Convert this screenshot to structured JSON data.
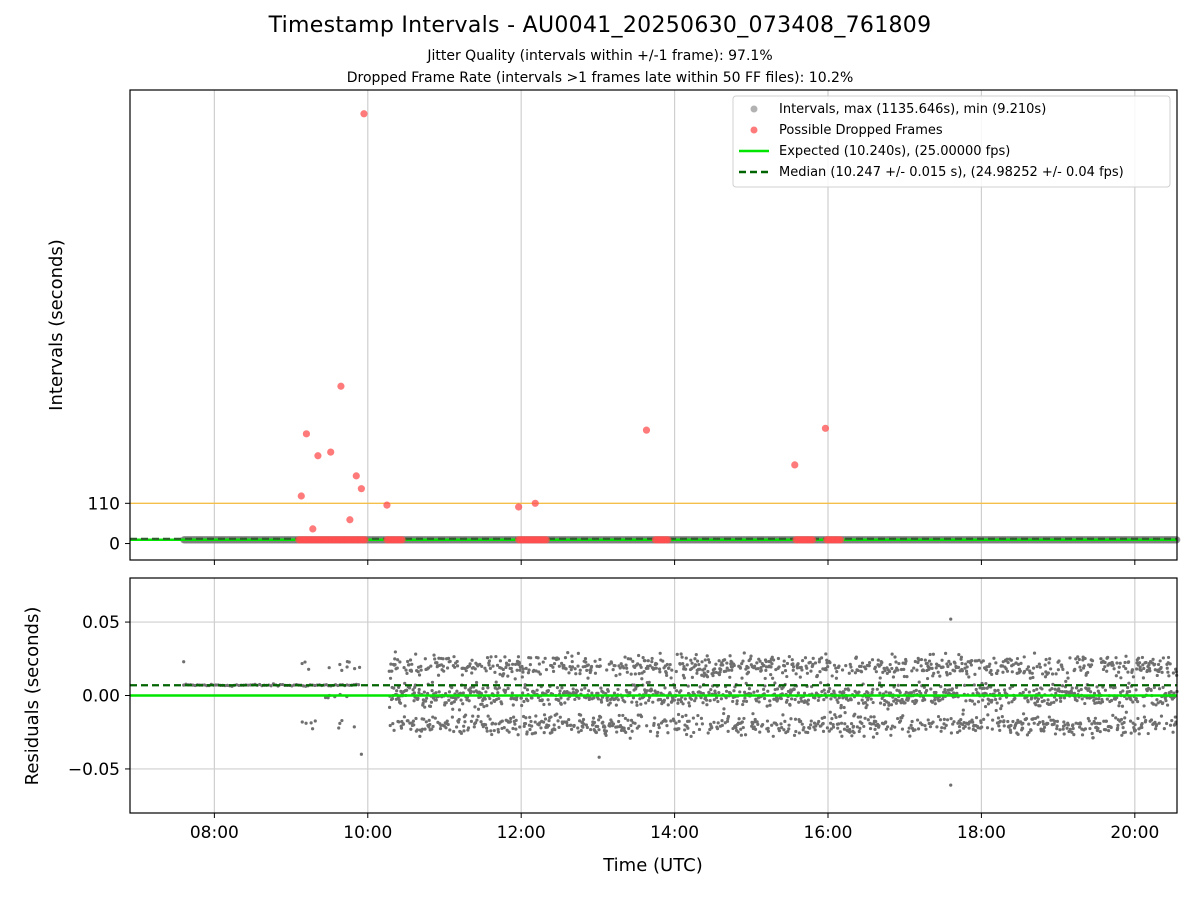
{
  "chart_data": [
    {
      "type": "scatter",
      "title": "Timestamp Intervals - AU0041_20250630_073408_761809",
      "subtitle_lines": [
        "Jitter Quality (intervals within +/-1 frame): 97.1%",
        "Dropped Frame Rate (intervals >1 frames late within 50 FF files): 10.2%"
      ],
      "xlabel": "",
      "ylabel": "Intervals (seconds)",
      "xlim_hours": [
        6.9,
        20.55
      ],
      "ylim": [
        -45,
        1240
      ],
      "x_ticks": [
        "08:00",
        "10:00",
        "12:00",
        "14:00",
        "16:00",
        "18:00",
        "20:00"
      ],
      "y_ticks": [
        0,
        110
      ],
      "threshold_line": 110,
      "grid": true,
      "legend_position": "upper right",
      "legend": [
        "Intervals, max (1135.646s), min (9.210s)",
        "Possible Dropped Frames",
        "Expected (10.240s), (25.00000 fps)",
        "Median (10.247 +/- 0.015 s), (24.98252 +/- 0.04 fps)"
      ],
      "expected_interval": 10.24,
      "median_interval": 10.247,
      "intervals_series": {
        "name": "Intervals",
        "x_range_hours": [
          7.6,
          20.55
        ],
        "typical_value": 10.24,
        "max": 1135.646,
        "min": 9.21
      },
      "dropped_frames": {
        "name": "Possible Dropped Frames",
        "points": [
          {
            "x": "09:08",
            "y": 130
          },
          {
            "x": "09:12",
            "y": 300
          },
          {
            "x": "09:17",
            "y": 40
          },
          {
            "x": "09:21",
            "y": 240
          },
          {
            "x": "09:31",
            "y": 250
          },
          {
            "x": "09:39",
            "y": 430
          },
          {
            "x": "09:46",
            "y": 65
          },
          {
            "x": "09:51",
            "y": 185
          },
          {
            "x": "09:55",
            "y": 150
          },
          {
            "x": "09:57",
            "y": 1175
          },
          {
            "x": "10:15",
            "y": 105
          },
          {
            "x": "11:58",
            "y": 100
          },
          {
            "x": "12:11",
            "y": 110
          },
          {
            "x": "13:38",
            "y": 310
          },
          {
            "x": "15:34",
            "y": 215
          },
          {
            "x": "15:58",
            "y": 315
          }
        ],
        "clusters_at_baseline": [
          {
            "start": "09:06",
            "end": "09:58"
          },
          {
            "start": "10:15",
            "end": "10:27"
          },
          {
            "start": "11:58",
            "end": "12:20"
          },
          {
            "start": "13:45",
            "end": "13:55"
          },
          {
            "start": "15:35",
            "end": "15:48"
          },
          {
            "start": "15:59",
            "end": "16:10"
          }
        ]
      }
    },
    {
      "type": "scatter",
      "xlabel": "Time (UTC)",
      "ylabel": "Residuals (seconds)",
      "xlim_hours": [
        6.9,
        20.55
      ],
      "ylim": [
        -0.08,
        0.08
      ],
      "y_ticks": [
        "0.05",
        "0.00",
        "−0.05"
      ],
      "x_ticks": [
        "08:00",
        "10:00",
        "12:00",
        "14:00",
        "16:00",
        "18:00",
        "20:00"
      ],
      "grid": true,
      "expected_residual": 0.0,
      "median_residual": 0.007,
      "residual_levels": [
        -0.02,
        0.0,
        0.02
      ],
      "outliers": [
        {
          "x": "07:36",
          "y": 0.023
        },
        {
          "x": "09:55",
          "y": -0.04
        },
        {
          "x": "13:01",
          "y": -0.042
        },
        {
          "x": "17:36",
          "y": -0.061
        },
        {
          "x": "17:36",
          "y": 0.052
        }
      ]
    }
  ],
  "colors": {
    "intervals": "#7f7f7f",
    "dropped": "#ff4f4f",
    "expected": "#00e600",
    "median": "#006400",
    "threshold": "#f5c04a",
    "grid": "#cfcfcf"
  }
}
